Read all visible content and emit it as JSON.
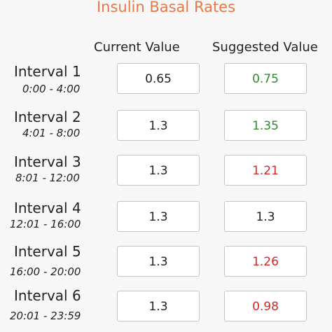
{
  "title": "Insulin Basal Rates",
  "headers": {
    "current": "Current Value",
    "suggested": "Suggested Value"
  },
  "colors": {
    "title": "#e07a4a",
    "increase": "#2d8a2d",
    "decrease": "#d42828",
    "unchanged": "#222222"
  },
  "intervals": [
    {
      "label": "Interval 1",
      "time": "0:00 - 4:00",
      "current": "0.65",
      "suggested": "0.75",
      "trend": "up"
    },
    {
      "label": "Interval 2",
      "time": "4:01 - 8:00",
      "current": "1.3",
      "suggested": "1.35",
      "trend": "up"
    },
    {
      "label": "Interval 3",
      "time": "8:01 - 12:00",
      "current": "1.3",
      "suggested": "1.21",
      "trend": "down"
    },
    {
      "label": "Interval 4",
      "time": "12:01 - 16:00",
      "current": "1.3",
      "suggested": "1.3",
      "trend": "same"
    },
    {
      "label": "Interval 5",
      "time": "16:00 - 20:00",
      "current": "1.3",
      "suggested": "1.26",
      "trend": "down"
    },
    {
      "label": "Interval 6",
      "time": "20:01 - 23:59",
      "current": "1.3",
      "suggested": "0.98",
      "trend": "down"
    }
  ]
}
